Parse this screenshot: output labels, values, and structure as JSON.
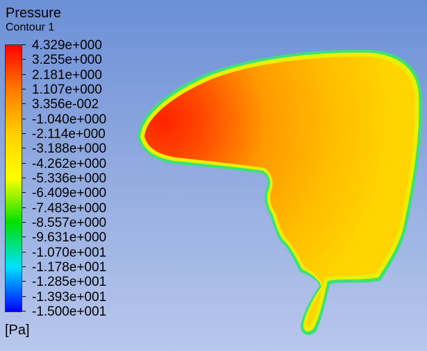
{
  "legend": {
    "title": "Pressure",
    "subtitle": "Contour 1",
    "unit": "[Pa]",
    "levels": [
      "4.329e+000",
      "3.255e+000",
      "2.181e+000",
      "1.107e+000",
      "3.356e-002",
      "-1.040e+000",
      "-2.114e+000",
      "-3.188e+000",
      "-4.262e+000",
      "-5.336e+000",
      "-6.409e+000",
      "-7.483e+000",
      "-8.557e+000",
      "-9.631e+000",
      "-1.070e+001",
      "-1.178e+001",
      "-1.285e+001",
      "-1.393e+001",
      "-1.500e+001"
    ],
    "colors": {
      "max": "#ff0000",
      "high": "#ff7a00",
      "mid_high": "#ffd000",
      "mid": "#ffff00",
      "mid_low": "#00e000",
      "low": "#00e0ff",
      "min": "#0000ff"
    }
  },
  "contour": {
    "field_colors": {
      "core": "#ff2a00",
      "body": "#ffb000",
      "edge": "#e8f000",
      "rim": "#40e060"
    }
  }
}
